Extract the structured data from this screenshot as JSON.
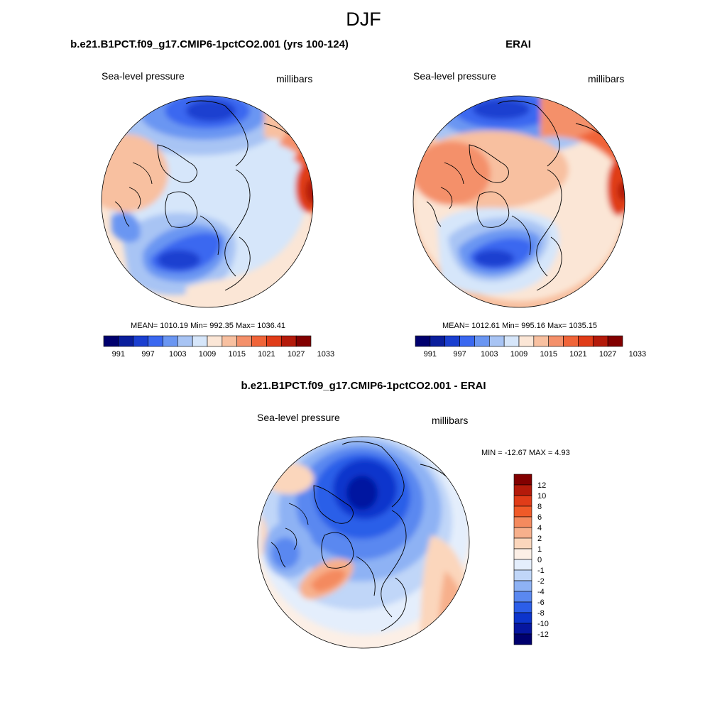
{
  "page": {
    "title": "DJF"
  },
  "panels": [
    {
      "title": "b.e21.B1PCT.f09_g17.CMIP6-1pctCO2.001 (yrs 100-124)",
      "left_label": "Sea-level pressure",
      "right_label": "millibars",
      "stats": "MEAN= 1010.19  Min= 992.35  Max= 1036.41",
      "stats_values": {
        "mean": 1010.19,
        "min": 992.35,
        "max": 1036.41
      }
    },
    {
      "title": "ERAI",
      "left_label": "Sea-level pressure",
      "right_label": "millibars",
      "stats": "MEAN= 1012.61  Min= 995.16  Max= 1035.15",
      "stats_values": {
        "mean": 1012.61,
        "min": 995.16,
        "max": 1035.15
      }
    },
    {
      "title": "b.e21.B1PCT.f09_g17.CMIP6-1pctCO2.001 - ERAI",
      "left_label": "Sea-level pressure",
      "right_label": "millibars",
      "stats": "MIN = -12.67 MAX =   4.93",
      "stats_values": {
        "min": -12.67,
        "max": 4.93
      }
    }
  ],
  "colorbar_abs": {
    "ticks": [
      "991",
      "997",
      "1003",
      "1009",
      "1015",
      "1021",
      "1027",
      "1033"
    ],
    "colors": [
      "#00006e",
      "#0a1e9c",
      "#1a3fd0",
      "#3a68f0",
      "#6a96f2",
      "#a8c4f4",
      "#d6e6fa",
      "#fbe6d6",
      "#f8c0a0",
      "#f4906a",
      "#f06438",
      "#e03c18",
      "#b41a0a",
      "#820000"
    ]
  },
  "colorbar_diff": {
    "labels": [
      "12",
      "10",
      "8",
      "6",
      "4",
      "2",
      "1",
      "0",
      "-1",
      "-2",
      "-4",
      "-6",
      "-8",
      "-10",
      "-12"
    ],
    "colors": [
      "#820000",
      "#b41a0a",
      "#e03c18",
      "#f05a28",
      "#f48a5e",
      "#f7b08c",
      "#fbd6bc",
      "#fcefe6",
      "#e4eefc",
      "#c0d6f8",
      "#8eb2f4",
      "#5a88f0",
      "#2c5ee8",
      "#0c34cc",
      "#0616a0",
      "#00006e"
    ]
  },
  "chart_data": {
    "type": "polar-stereographic contour maps (Northern Hemisphere)",
    "season": "DJF",
    "variable": "Sea-level pressure",
    "units": "millibars",
    "maps": [
      {
        "name": "b.e21.B1PCT.f09_g17.CMIP6-1pctCO2.001 (yrs 100-124)",
        "mean": 1010.19,
        "min": 992.35,
        "max": 1036.41
      },
      {
        "name": "ERAI",
        "mean": 1012.61,
        "min": 995.16,
        "max": 1035.15
      },
      {
        "name": "b.e21.B1PCT.f09_g17.CMIP6-1pctCO2.001 - ERAI",
        "min": -12.67,
        "max": 4.93
      }
    ],
    "contour_levels_abs": [
      991,
      994,
      997,
      1000,
      1003,
      1006,
      1009,
      1012,
      1015,
      1018,
      1021,
      1024,
      1027,
      1030,
      1033
    ],
    "contour_levels_diff": [
      -12,
      -10,
      -8,
      -6,
      -4,
      -2,
      -1,
      0,
      1,
      2,
      4,
      6,
      8,
      10,
      12
    ]
  }
}
